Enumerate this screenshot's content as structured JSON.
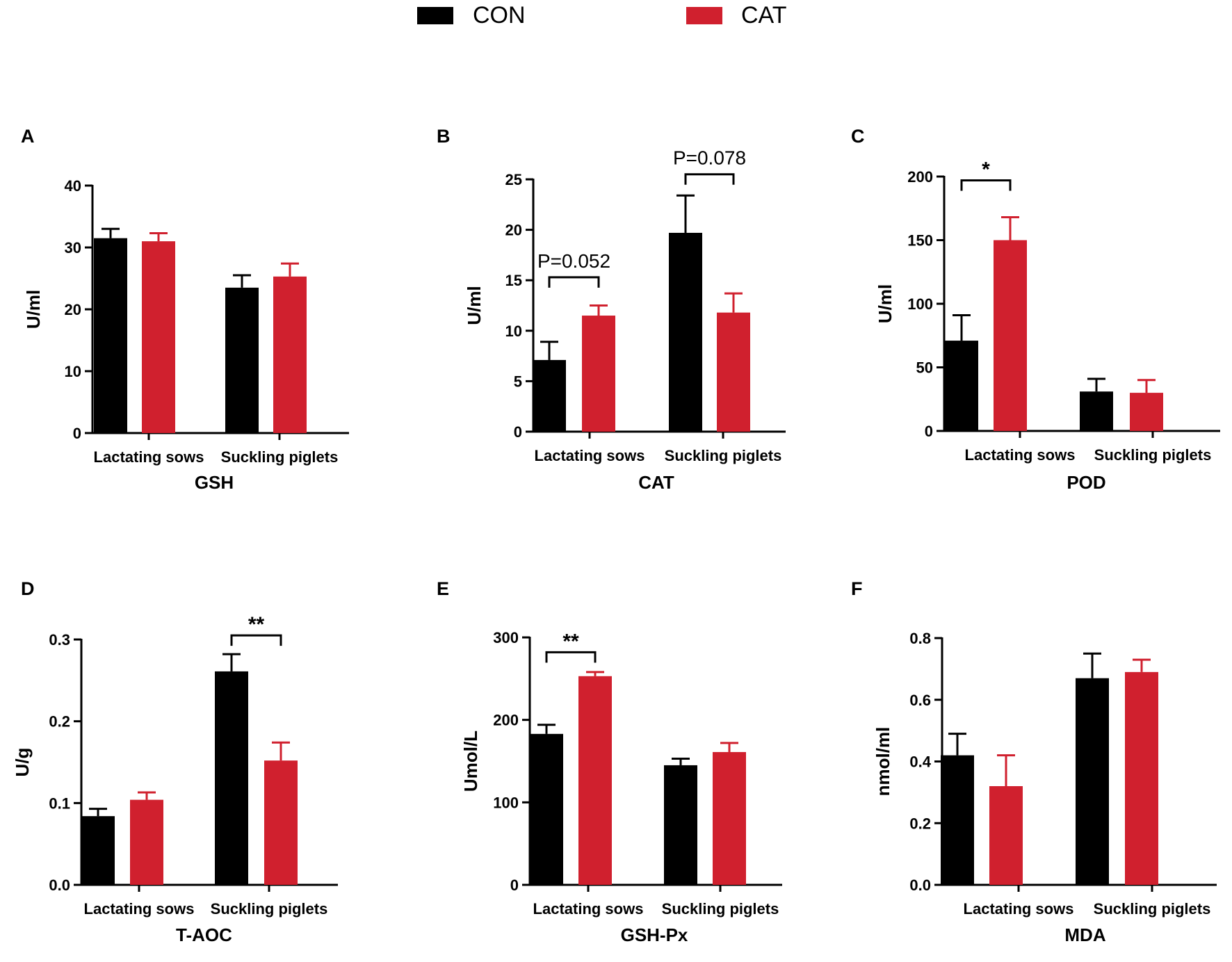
{
  "legend": {
    "items": [
      {
        "label": "CON",
        "color": "#000000"
      },
      {
        "label": "CAT",
        "color": "#d0202e"
      }
    ]
  },
  "colors": {
    "con": "#000000",
    "cat": "#d0202e"
  },
  "chart_data": [
    {
      "panel": "A",
      "type": "bar",
      "title": "GSH",
      "xlabel": "GSH",
      "ylabel": "U/ml",
      "ylim": [
        0,
        40
      ],
      "yticks": [
        "0",
        "10",
        "20",
        "30",
        "40"
      ],
      "categories": [
        "Lactating sows",
        "Suckling piglets"
      ],
      "series": [
        {
          "name": "CON",
          "values": [
            31.5,
            23.5
          ],
          "errors": [
            1.5,
            2.0
          ]
        },
        {
          "name": "CAT",
          "values": [
            31.0,
            25.3
          ],
          "errors": [
            1.3,
            2.1
          ]
        }
      ],
      "annotations": []
    },
    {
      "panel": "B",
      "type": "bar",
      "title": "CAT",
      "xlabel": "CAT",
      "ylabel": "U/ml",
      "ylim": [
        0,
        25
      ],
      "yticks": [
        "0",
        "5",
        "10",
        "15",
        "20",
        "25"
      ],
      "categories": [
        "Lactating sows",
        "Suckling piglets"
      ],
      "series": [
        {
          "name": "CON",
          "values": [
            7.1,
            19.7
          ],
          "errors": [
            1.8,
            3.7
          ]
        },
        {
          "name": "CAT",
          "values": [
            11.5,
            11.8
          ],
          "errors": [
            1.0,
            1.9
          ]
        }
      ],
      "annotations": [
        {
          "category": 0,
          "label": "P=0.052",
          "y": 15.3
        },
        {
          "category": 1,
          "label": "P=0.078",
          "y": 25.5
        }
      ]
    },
    {
      "panel": "C",
      "type": "bar",
      "title": "POD",
      "xlabel": "POD",
      "ylabel": "U/ml",
      "ylim": [
        0,
        200
      ],
      "yticks": [
        "0",
        "50",
        "100",
        "150",
        "200"
      ],
      "categories": [
        "Lactating sows",
        "Suckling piglets"
      ],
      "series": [
        {
          "name": "CON",
          "values": [
            71,
            31
          ],
          "errors": [
            20,
            10
          ]
        },
        {
          "name": "CAT",
          "values": [
            150,
            30
          ],
          "errors": [
            18,
            10
          ]
        }
      ],
      "annotations": [
        {
          "category": 0,
          "label": "*",
          "y": 197
        }
      ]
    },
    {
      "panel": "D",
      "type": "bar",
      "title": "T-AOC",
      "xlabel": "T-AOC",
      "ylabel": "U/g",
      "ylim": [
        0,
        0.3
      ],
      "yticks": [
        "0.0",
        "0.1",
        "0.2",
        "0.3"
      ],
      "categories": [
        "Lactating sows",
        "Suckling piglets"
      ],
      "series": [
        {
          "name": "CON",
          "values": [
            0.084,
            0.261
          ],
          "errors": [
            0.009,
            0.021
          ]
        },
        {
          "name": "CAT",
          "values": [
            0.104,
            0.152
          ],
          "errors": [
            0.009,
            0.022
          ]
        }
      ],
      "annotations": [
        {
          "category": 1,
          "label": "**",
          "y": 0.305
        }
      ]
    },
    {
      "panel": "E",
      "type": "bar",
      "title": "GSH-Px",
      "xlabel": "GSH-Px",
      "ylabel": "Umol/L",
      "ylim": [
        0,
        300
      ],
      "yticks": [
        "0",
        "100",
        "200",
        "300"
      ],
      "categories": [
        "Lactating sows",
        "Suckling piglets"
      ],
      "series": [
        {
          "name": "CON",
          "values": [
            183,
            145
          ],
          "errors": [
            11,
            8
          ]
        },
        {
          "name": "CAT",
          "values": [
            253,
            161
          ],
          "errors": [
            5,
            11
          ]
        }
      ],
      "annotations": [
        {
          "category": 0,
          "label": "**",
          "y": 282
        }
      ]
    },
    {
      "panel": "F",
      "type": "bar",
      "title": "MDA",
      "xlabel": "MDA",
      "ylabel": "nmol/ml",
      "ylim": [
        0,
        0.8
      ],
      "yticks": [
        "0.0",
        "0.2",
        "0.4",
        "0.6",
        "0.8"
      ],
      "categories": [
        "Lactating sows",
        "Suckling piglets"
      ],
      "series": [
        {
          "name": "CON",
          "values": [
            0.42,
            0.67
          ],
          "errors": [
            0.07,
            0.08
          ]
        },
        {
          "name": "CAT",
          "values": [
            0.32,
            0.69
          ],
          "errors": [
            0.1,
            0.04
          ]
        }
      ],
      "annotations": []
    }
  ]
}
